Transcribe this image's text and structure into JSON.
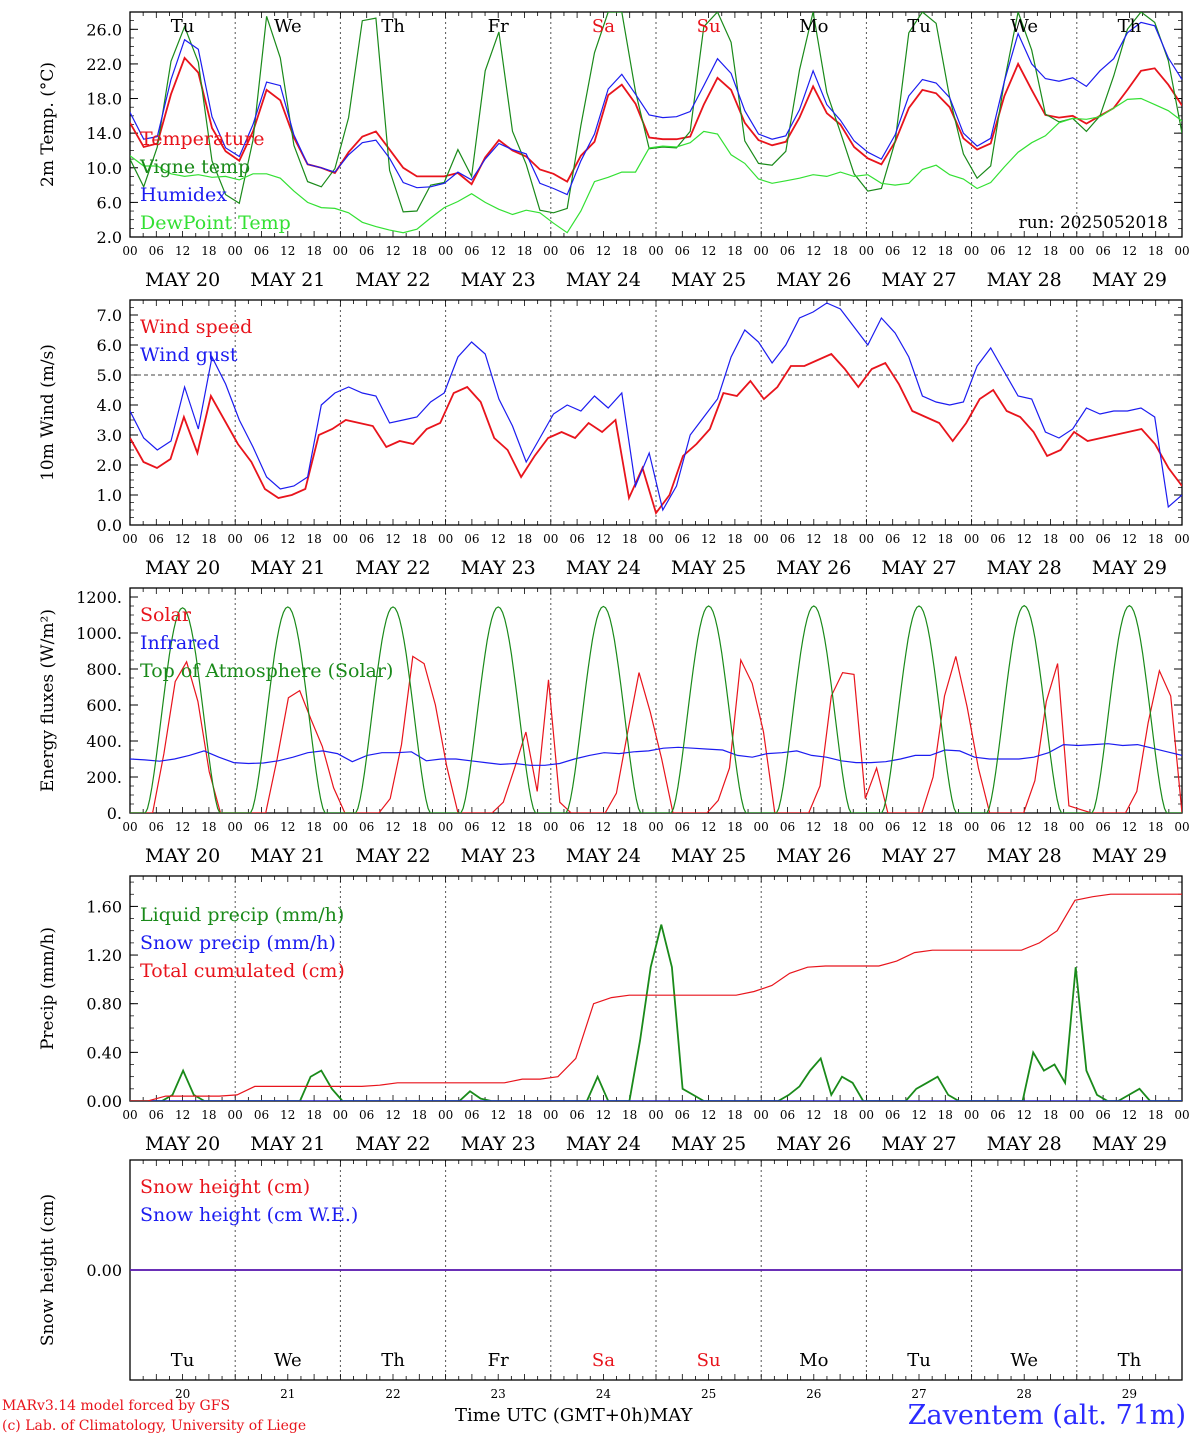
{
  "colors": {
    "red": "#e8141c",
    "green": "#1a8a1a",
    "blue": "#1c1cf0",
    "lightgreen": "#33e033",
    "grid": "#444444"
  },
  "days": [
    "MAY 20",
    "MAY 21",
    "MAY 22",
    "MAY 23",
    "MAY 24",
    "MAY 25",
    "MAY 26",
    "MAY 27",
    "MAY 28",
    "MAY 29"
  ],
  "hour_ticks": [
    "00",
    "06",
    "12",
    "18"
  ],
  "weekdays": [
    {
      "label": "Tu",
      "color": "#000000"
    },
    {
      "label": "We",
      "color": "#000000"
    },
    {
      "label": "Th",
      "color": "#000000"
    },
    {
      "label": "Fr",
      "color": "#000000"
    },
    {
      "label": "Sa",
      "color": "#e8141c"
    },
    {
      "label": "Su",
      "color": "#e8141c"
    },
    {
      "label": "Mo",
      "color": "#000000"
    },
    {
      "label": "Tu",
      "color": "#000000"
    },
    {
      "label": "We",
      "color": "#000000"
    },
    {
      "label": "Th",
      "color": "#000000"
    }
  ],
  "day_numbers": [
    "20",
    "21",
    "22",
    "23",
    "24",
    "25",
    "26",
    "27",
    "28",
    "29"
  ],
  "footer": {
    "credit_line1": "MARv3.14 model forced by GFS",
    "credit_line2": "(c) Lab. of Climatology, University of Liege",
    "xaxis_caption": "Time UTC (GMT+0h)MAY",
    "station": "Zaventem (alt. 71m)"
  },
  "chart_data": [
    {
      "type": "line",
      "ylabel": "2m Temp. (°C)",
      "ylim": [
        2,
        28
      ],
      "yticks": [
        "2.0",
        "6.0",
        "10.0",
        "14.0",
        "18.0",
        "22.0",
        "26.0"
      ],
      "ytick_values": [
        2,
        6,
        10,
        14,
        18,
        22,
        26
      ],
      "annotation": "run: 2025052018",
      "legend_placement": "left",
      "series": [
        {
          "name": "Temperature",
          "color": "#e8141c",
          "values": [
            15.2,
            12.4,
            12.8,
            18.5,
            22.7,
            21.0,
            14.6,
            11.9,
            10.8,
            14.2,
            19.0,
            17.8,
            13.5,
            10.4,
            10.0,
            9.4,
            11.8,
            13.6,
            14.2,
            12.1,
            10.0,
            9.0,
            9.0,
            9.0,
            9.4,
            8.1,
            11.2,
            13.2,
            12.0,
            11.3,
            9.8,
            9.3,
            8.4,
            11.4,
            13.0,
            18.4,
            19.6,
            17.4,
            13.5,
            13.3,
            13.3,
            13.6,
            17.3,
            20.4,
            19.0,
            15.2,
            13.2,
            12.6,
            13.0,
            15.8,
            19.4,
            16.3,
            15.0,
            12.4,
            11.1,
            10.4,
            13.0,
            16.9,
            19.0,
            18.6,
            17.0,
            13.4,
            12.1,
            12.8,
            18.3,
            22.0,
            19.0,
            16.1,
            15.8,
            16.0,
            15.1,
            16.0,
            16.9,
            19.0,
            21.2,
            21.5,
            19.6,
            17.2
          ]
        },
        {
          "name": "Vigne temp",
          "color": "#1a8a1a",
          "values": [
            11.0,
            7.8,
            12.4,
            22.3,
            26.3,
            22.2,
            10.8,
            6.9,
            5.9,
            13.2,
            27.5,
            22.7,
            12.6,
            8.4,
            7.8,
            9.9,
            15.8,
            27.0,
            27.3,
            9.7,
            4.9,
            5.0,
            8.0,
            8.3,
            12.1,
            9.0,
            21.2,
            25.7,
            14.2,
            10.4,
            5.1,
            4.8,
            5.3,
            14.9,
            23.3,
            28.0,
            28.0,
            18.8,
            12.2,
            12.4,
            12.3,
            14.2,
            26.3,
            28.0,
            24.5,
            13.1,
            10.5,
            10.3,
            11.9,
            21.3,
            28.0,
            18.7,
            14.1,
            9.3,
            7.3,
            7.6,
            13.0,
            25.6,
            28.0,
            26.7,
            18.1,
            11.6,
            8.8,
            10.2,
            20.0,
            28.0,
            23.6,
            16.2,
            15.3,
            15.7,
            14.2,
            16.0,
            20.6,
            26.0,
            28.0,
            26.8,
            22.4,
            14.0
          ]
        },
        {
          "name": "Humidex",
          "color": "#1c1cf0",
          "values": [
            16.4,
            13.3,
            13.6,
            20.2,
            24.8,
            23.7,
            15.9,
            12.3,
            11.3,
            15.0,
            19.9,
            19.5,
            13.8,
            10.4,
            10.0,
            9.5,
            11.5,
            12.9,
            13.2,
            11.1,
            8.3,
            7.7,
            7.8,
            8.2,
            9.5,
            8.6,
            11.0,
            12.8,
            12.1,
            11.6,
            8.2,
            7.6,
            6.9,
            10.8,
            13.9,
            19.1,
            20.8,
            18.5,
            16.1,
            15.8,
            15.9,
            16.5,
            19.5,
            22.6,
            20.9,
            16.6,
            13.9,
            13.3,
            13.7,
            16.7,
            21.2,
            17.3,
            15.5,
            13.1,
            11.8,
            11.0,
            13.8,
            18.3,
            20.2,
            19.8,
            18.1,
            14.0,
            12.5,
            13.4,
            20.0,
            25.5,
            22.0,
            20.3,
            20.0,
            20.4,
            19.4,
            21.2,
            22.6,
            25.6,
            26.8,
            26.4,
            22.7,
            20.2
          ]
        },
        {
          "name": "DewPoint Temp",
          "color": "#33e033",
          "values": [
            11.4,
            10.2,
            10.2,
            9.3,
            9.0,
            9.2,
            8.9,
            9.0,
            8.6,
            9.3,
            9.3,
            8.8,
            7.3,
            6.0,
            5.4,
            5.3,
            4.8,
            3.7,
            3.2,
            2.8,
            2.5,
            2.9,
            4.2,
            5.4,
            6.1,
            7.0,
            6.0,
            5.2,
            4.6,
            5.1,
            4.8,
            3.6,
            2.5,
            5.0,
            8.4,
            8.9,
            9.5,
            9.5,
            12.3,
            12.5,
            12.4,
            12.9,
            14.2,
            13.9,
            11.5,
            10.5,
            8.7,
            8.2,
            8.5,
            8.8,
            9.2,
            9.0,
            9.5,
            9.0,
            9.2,
            8.2,
            8.0,
            8.2,
            9.8,
            10.3,
            9.2,
            8.7,
            7.6,
            8.3,
            10.1,
            11.8,
            12.9,
            13.7,
            15.2,
            15.7,
            15.6,
            15.9,
            16.9,
            17.9,
            18.0,
            17.3,
            16.6,
            15.4
          ]
        }
      ]
    },
    {
      "type": "line",
      "ylabel": "10m Wind (m/s)",
      "ylim": [
        0,
        7.5
      ],
      "yticks": [
        "0.0",
        "1.0",
        "2.0",
        "3.0",
        "4.0",
        "5.0",
        "6.0",
        "7.0"
      ],
      "ytick_values": [
        0,
        1,
        2,
        3,
        4,
        5,
        6,
        7
      ],
      "reference_line": 5.0,
      "legend_placement": "left",
      "series": [
        {
          "name": "Wind speed",
          "color": "#e8141c",
          "values": [
            2.9,
            2.1,
            1.9,
            2.2,
            3.6,
            2.4,
            4.3,
            3.5,
            2.7,
            2.1,
            1.2,
            0.9,
            1.0,
            1.2,
            3.0,
            3.2,
            3.5,
            3.4,
            3.3,
            2.6,
            2.8,
            2.7,
            3.2,
            3.4,
            4.4,
            4.6,
            4.1,
            2.9,
            2.5,
            1.6,
            2.3,
            2.9,
            3.1,
            2.9,
            3.4,
            3.1,
            3.5,
            0.9,
            1.9,
            0.4,
            1.0,
            2.3,
            2.7,
            3.2,
            4.4,
            4.3,
            4.8,
            4.2,
            4.6,
            5.3,
            5.3,
            5.5,
            5.7,
            5.2,
            4.6,
            5.2,
            5.4,
            4.7,
            3.8,
            3.6,
            3.4,
            2.8,
            3.4,
            4.2,
            4.5,
            3.8,
            3.6,
            3.1,
            2.3,
            2.5,
            3.1,
            2.8,
            2.9,
            3.0,
            3.1,
            3.2,
            2.7,
            1.9,
            1.3
          ]
        },
        {
          "name": "Wind gust",
          "color": "#1c1cf0",
          "values": [
            3.8,
            2.9,
            2.5,
            2.8,
            4.6,
            3.2,
            5.6,
            4.7,
            3.5,
            2.6,
            1.6,
            1.2,
            1.3,
            1.6,
            4.0,
            4.4,
            4.6,
            4.4,
            4.3,
            3.4,
            3.5,
            3.6,
            4.1,
            4.4,
            5.6,
            6.1,
            5.7,
            4.2,
            3.3,
            2.1,
            2.9,
            3.7,
            4.0,
            3.8,
            4.3,
            3.9,
            4.4,
            1.3,
            2.4,
            0.5,
            1.3,
            3.0,
            3.6,
            4.2,
            5.6,
            6.5,
            6.1,
            5.4,
            6.0,
            6.9,
            7.1,
            7.4,
            7.2,
            6.6,
            6.0,
            6.9,
            6.4,
            5.6,
            4.3,
            4.1,
            4.0,
            4.1,
            5.3,
            5.9,
            5.1,
            4.3,
            4.2,
            3.1,
            2.9,
            3.2,
            3.9,
            3.7,
            3.8,
            3.8,
            3.9,
            3.6,
            0.6,
            1.0
          ]
        }
      ]
    },
    {
      "type": "line",
      "ylabel": "Energy fluxes (W/m²)",
      "ylim": [
        0,
        1250
      ],
      "yticks": [
        "0.",
        "200.",
        "400.",
        "600.",
        "800.",
        "1000.",
        "1200."
      ],
      "ytick_values": [
        0,
        200,
        400,
        600,
        800,
        1000,
        1200
      ],
      "legend_placement": "left",
      "series": [
        {
          "name": "Solar",
          "color": "#e8141c",
          "values": [
            0,
            0,
            0,
            330,
            730,
            840,
            620,
            230,
            0,
            0,
            0,
            0,
            0,
            300,
            640,
            680,
            520,
            370,
            140,
            0,
            0,
            0,
            0,
            80,
            380,
            870,
            830,
            600,
            260,
            0,
            0,
            0,
            0,
            60,
            250,
            450,
            120,
            740,
            60,
            0,
            0,
            0,
            0,
            110,
            450,
            780,
            560,
            300,
            0,
            0,
            0,
            0,
            70,
            250,
            850,
            720,
            450,
            0,
            0,
            0,
            0,
            150,
            650,
            780,
            770,
            80,
            250,
            0,
            0,
            0,
            0,
            200,
            650,
            870,
            590,
            250,
            0,
            0,
            0,
            0,
            180,
            620,
            830,
            40,
            20,
            0,
            0,
            0,
            0,
            120,
            500,
            790,
            650,
            0
          ]
        },
        {
          "name": "Infrared",
          "color": "#1c1cf0",
          "values": [
            300,
            295,
            288,
            300,
            320,
            345,
            310,
            280,
            275,
            278,
            290,
            310,
            335,
            345,
            330,
            285,
            320,
            335,
            335,
            340,
            290,
            300,
            300,
            290,
            280,
            270,
            275,
            265,
            265,
            275,
            300,
            320,
            335,
            330,
            340,
            345,
            360,
            365,
            360,
            355,
            350,
            320,
            310,
            330,
            335,
            345,
            320,
            310,
            290,
            280,
            280,
            285,
            300,
            320,
            320,
            350,
            345,
            310,
            300,
            300,
            300,
            310,
            335,
            380,
            375,
            380,
            385,
            375,
            380,
            360,
            340,
            320
          ]
        },
        {
          "name": "Top of Atmosphere (Solar)",
          "color": "#1a8a1a",
          "values": [
            1140,
            1145,
            1145,
            1145,
            1148,
            1150,
            1150,
            1150,
            1152,
            1152
          ]
        }
      ]
    },
    {
      "type": "line",
      "ylabel": "Precip (mm/h)",
      "ylim": [
        0,
        1.85
      ],
      "yticks": [
        "0.00",
        "0.40",
        "0.80",
        "1.20",
        "1.60"
      ],
      "ytick_values": [
        0,
        0.4,
        0.8,
        1.2,
        1.6
      ],
      "legend_placement": "left",
      "series": [
        {
          "name": "Liquid precip (mm/h)",
          "color": "#1a8a1a",
          "values": [
            0,
            0,
            0,
            0,
            0.05,
            0.25,
            0.05,
            0,
            0,
            0,
            0,
            0,
            0,
            0,
            0,
            0,
            0,
            0.2,
            0.25,
            0.1,
            0,
            0,
            0,
            0,
            0,
            0,
            0,
            0,
            0,
            0,
            0,
            0,
            0.08,
            0.02,
            0,
            0,
            0,
            0,
            0,
            0,
            0,
            0,
            0,
            0,
            0.2,
            0,
            0,
            0,
            0.5,
            1.1,
            1.45,
            1.1,
            0.1,
            0.05,
            0,
            0,
            0,
            0,
            0,
            0,
            0,
            0,
            0.05,
            0.12,
            0.25,
            0.35,
            0.05,
            0.2,
            0.15,
            0,
            0,
            0,
            0,
            0,
            0.1,
            0.15,
            0.2,
            0.05,
            0,
            0,
            0,
            0,
            0,
            0,
            0,
            0.4,
            0.25,
            0.3,
            0.15,
            1.1,
            0.25,
            0.05,
            0,
            0,
            0.05,
            0.1,
            0,
            0,
            0,
            0
          ]
        },
        {
          "name": "Snow precip (mm/h)",
          "color": "#1c1cf0",
          "values": [
            0,
            0,
            0,
            0,
            0,
            0,
            0,
            0,
            0,
            0
          ]
        },
        {
          "name": "Total cumulated (cm)",
          "color": "#e8141c",
          "values": [
            0,
            0,
            0.04,
            0.04,
            0.04,
            0.04,
            0.05,
            0.12,
            0.12,
            0.12,
            0.12,
            0.12,
            0.12,
            0.12,
            0.13,
            0.15,
            0.15,
            0.15,
            0.15,
            0.15,
            0.15,
            0.15,
            0.18,
            0.18,
            0.2,
            0.35,
            0.8,
            0.85,
            0.87,
            0.87,
            0.87,
            0.87,
            0.87,
            0.87,
            0.87,
            0.9,
            0.95,
            1.05,
            1.1,
            1.11,
            1.11,
            1.11,
            1.11,
            1.15,
            1.22,
            1.24,
            1.24,
            1.24,
            1.24,
            1.24,
            1.24,
            1.3,
            1.4,
            1.65,
            1.68,
            1.7,
            1.7,
            1.7,
            1.7,
            1.7
          ]
        }
      ]
    },
    {
      "type": "line",
      "ylabel": "Snow height (cm)",
      "ylim": [
        -1,
        1
      ],
      "yticks": [
        "0.00"
      ],
      "ytick_values": [
        0
      ],
      "legend_placement": "left",
      "series": [
        {
          "name": "Snow height (cm)",
          "color": "#e8141c",
          "values": [
            0,
            0
          ]
        },
        {
          "name": "Snow height (cm W.E.)",
          "color": "#1c1cf0",
          "values": [
            0,
            0
          ]
        }
      ]
    }
  ]
}
